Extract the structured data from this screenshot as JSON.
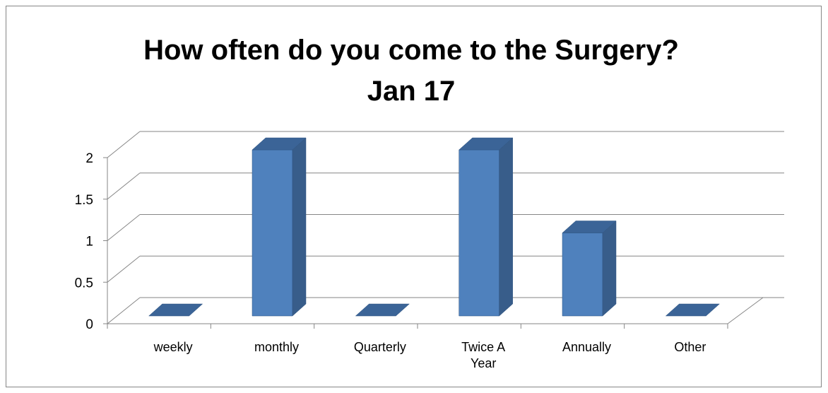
{
  "chart_data": {
    "type": "bar3d",
    "title": "How often do you come to the Surgery?",
    "subtitle": "Jan 17",
    "categories": [
      "weekly",
      "monthly",
      "Quarterly",
      "Twice A Year",
      "Annually",
      "Other"
    ],
    "values": [
      0,
      2,
      0,
      2,
      1,
      0
    ],
    "color": "#4f81bd",
    "ylim": [
      0,
      2
    ],
    "yticks": [
      0,
      0.5,
      1,
      1.5,
      2
    ],
    "grid": true
  }
}
